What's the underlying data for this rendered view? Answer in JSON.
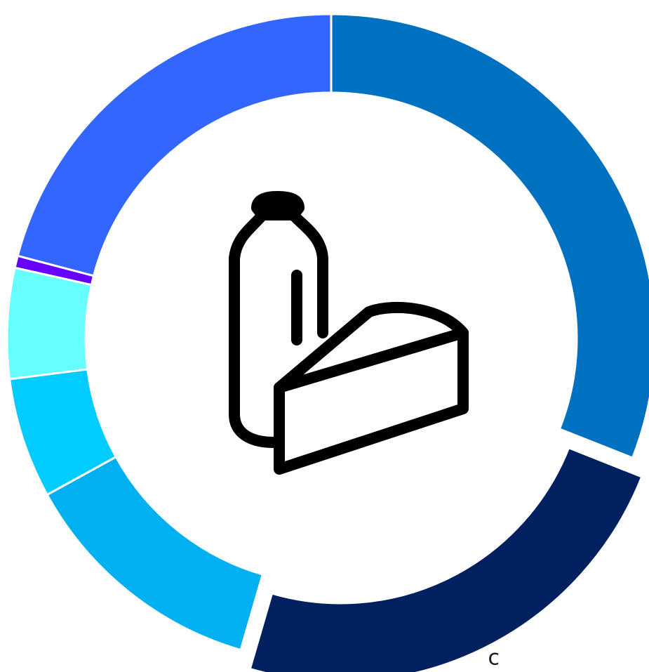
{
  "chart_data": {
    "type": "pie",
    "variant": "donut",
    "title": "",
    "center_icon": "dairy-milk-cheese-icon",
    "start_angle_deg": 0,
    "slices": [
      {
        "value": 31.0,
        "color": "#0070C0",
        "label": "",
        "exploded": false
      },
      {
        "value": 23.5,
        "color": "#002060",
        "label": "c",
        "exploded": true
      },
      {
        "value": 12.5,
        "color": "#00B0F0",
        "label": "",
        "exploded": false
      },
      {
        "value": 6.0,
        "color": "#00CCFF",
        "label": "",
        "exploded": false
      },
      {
        "value": 5.5,
        "color": "#66FFFF",
        "label": "",
        "exploded": false
      },
      {
        "value": 0.6,
        "color": "#6600FF",
        "label": "",
        "exploded": false
      },
      {
        "value": 20.9,
        "color": "#3366FF",
        "label": "",
        "exploded": false
      }
    ],
    "legend": "none"
  }
}
